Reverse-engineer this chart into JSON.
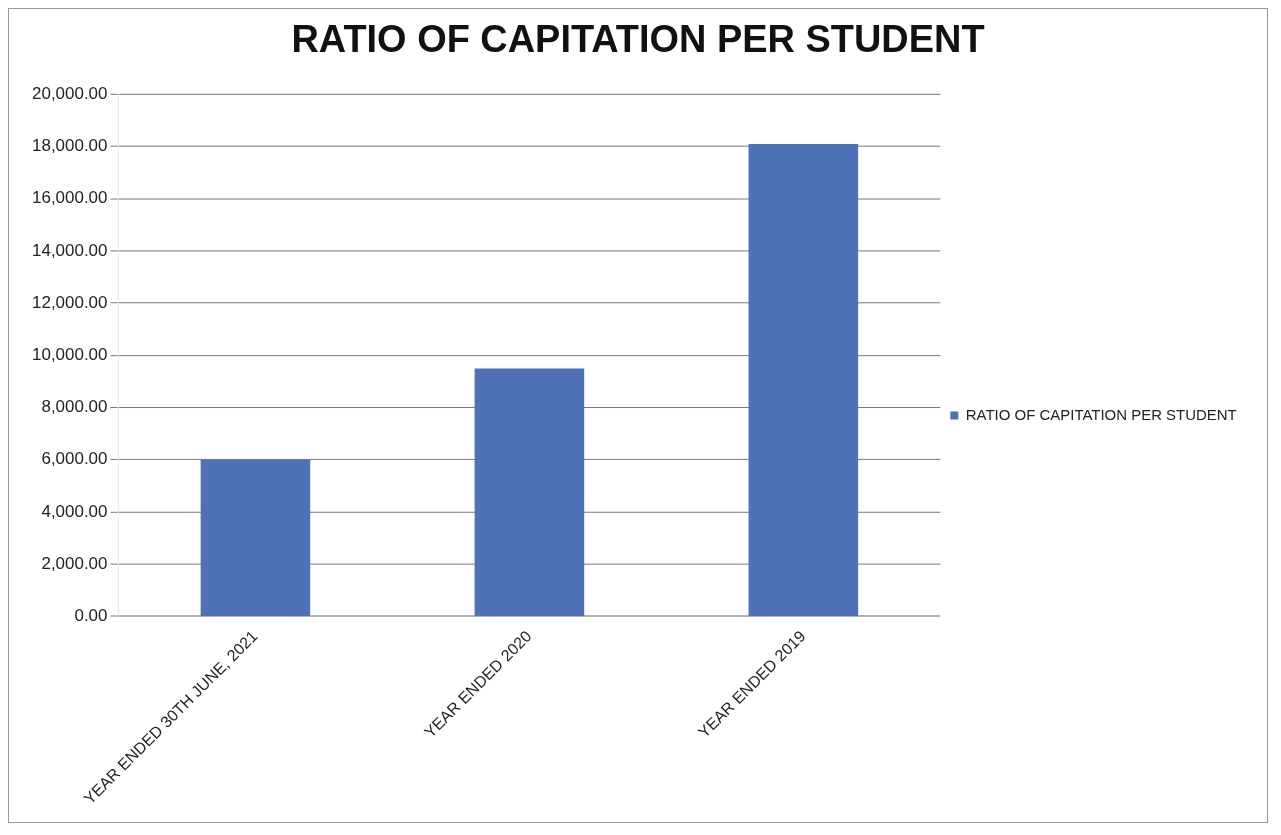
{
  "chart_data": {
    "type": "bar",
    "title": "RATIO OF CAPITATION PER STUDENT",
    "categories": [
      "YEAR ENDED 30TH JUNE, 2021",
      "YEAR ENDED 2020",
      "YEAR ENDED 2019"
    ],
    "series": [
      {
        "name": "RATIO OF CAPITATION PER STUDENT",
        "color": "#4f71b8",
        "values": [
          6000,
          9500,
          18100
        ]
      }
    ],
    "ylim": [
      0,
      20000
    ],
    "yticks": [
      {
        "value": 0,
        "label": "0.00"
      },
      {
        "value": 2000,
        "label": "2,000.00"
      },
      {
        "value": 4000,
        "label": "4,000.00"
      },
      {
        "value": 6000,
        "label": "6,000.00"
      },
      {
        "value": 8000,
        "label": "8,000.00"
      },
      {
        "value": 10000,
        "label": "10,000.00"
      },
      {
        "value": 12000,
        "label": "12,000.00"
      },
      {
        "value": 14000,
        "label": "14,000.00"
      },
      {
        "value": 16000,
        "label": "16,000.00"
      },
      {
        "value": 18000,
        "label": "18,000.00"
      },
      {
        "value": 20000,
        "label": "20,000.00"
      }
    ],
    "grid": "y",
    "legend": "right"
  }
}
